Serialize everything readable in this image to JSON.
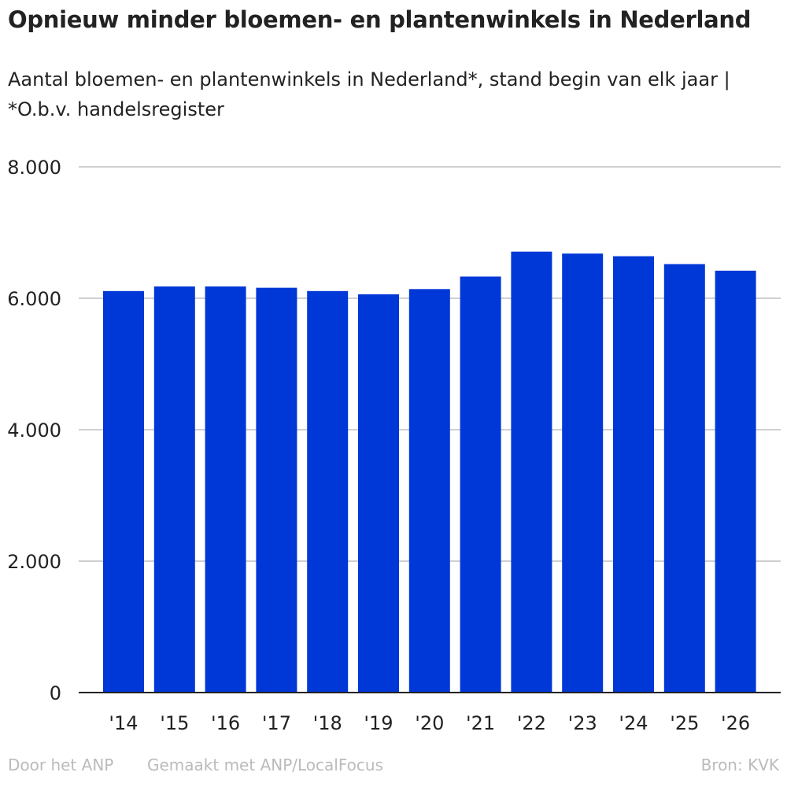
{
  "title": "Opnieuw minder bloemen- en plantenwinkels in Nederland",
  "subtitle": "Aantal bloemen- en plantenwinkels in Nederland*, stand begin van elk jaar | *O.b.v. handelsregister",
  "footer": {
    "by": "Door het ANP",
    "made_with": "Gemaakt met ANP/LocalFocus",
    "source": "Bron:  KVK"
  },
  "chart_data": {
    "type": "bar",
    "categories": [
      "'14",
      "'15",
      "'16",
      "'17",
      "'18",
      "'19",
      "'20",
      "'21",
      "'22",
      "'23",
      "'24",
      "'25",
      "'26"
    ],
    "values": [
      6110,
      6180,
      6180,
      6160,
      6110,
      6060,
      6140,
      6330,
      6710,
      6680,
      6640,
      6520,
      6420
    ],
    "ylim": [
      0,
      8000
    ],
    "yticks": [
      0,
      2000,
      4000,
      6000,
      8000
    ],
    "ytick_labels": [
      "0",
      "2.000",
      "4.000",
      "6.000",
      "8.000"
    ],
    "grid": true,
    "bar_color": "#0037d7"
  }
}
